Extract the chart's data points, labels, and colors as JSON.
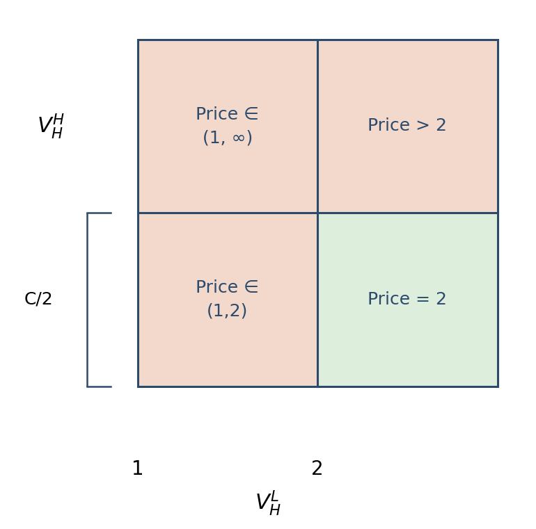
{
  "background_color": "#ffffff",
  "salmon_color": "#f2d9cc",
  "green_color": "#ddeedd",
  "border_color": "#2d4a6b",
  "text_color": "#2d4a6b",
  "label_top_left": "Price ∈\n(1, ∞)",
  "label_top_right": "Price > 2",
  "label_bottom_left": "Price ∈\n(1,2)",
  "label_bottom_right": "Price = 2",
  "xlabel": "$V_H^L$",
  "ylabel": "$V_H^H$",
  "brace_label": "C/2",
  "x_tick_labels": [
    "1",
    "2"
  ],
  "fontsize_labels": 18,
  "fontsize_axis_labels": 22,
  "fontsize_ticks": 20,
  "figsize": [
    7.7,
    7.61
  ],
  "dpi": 100
}
